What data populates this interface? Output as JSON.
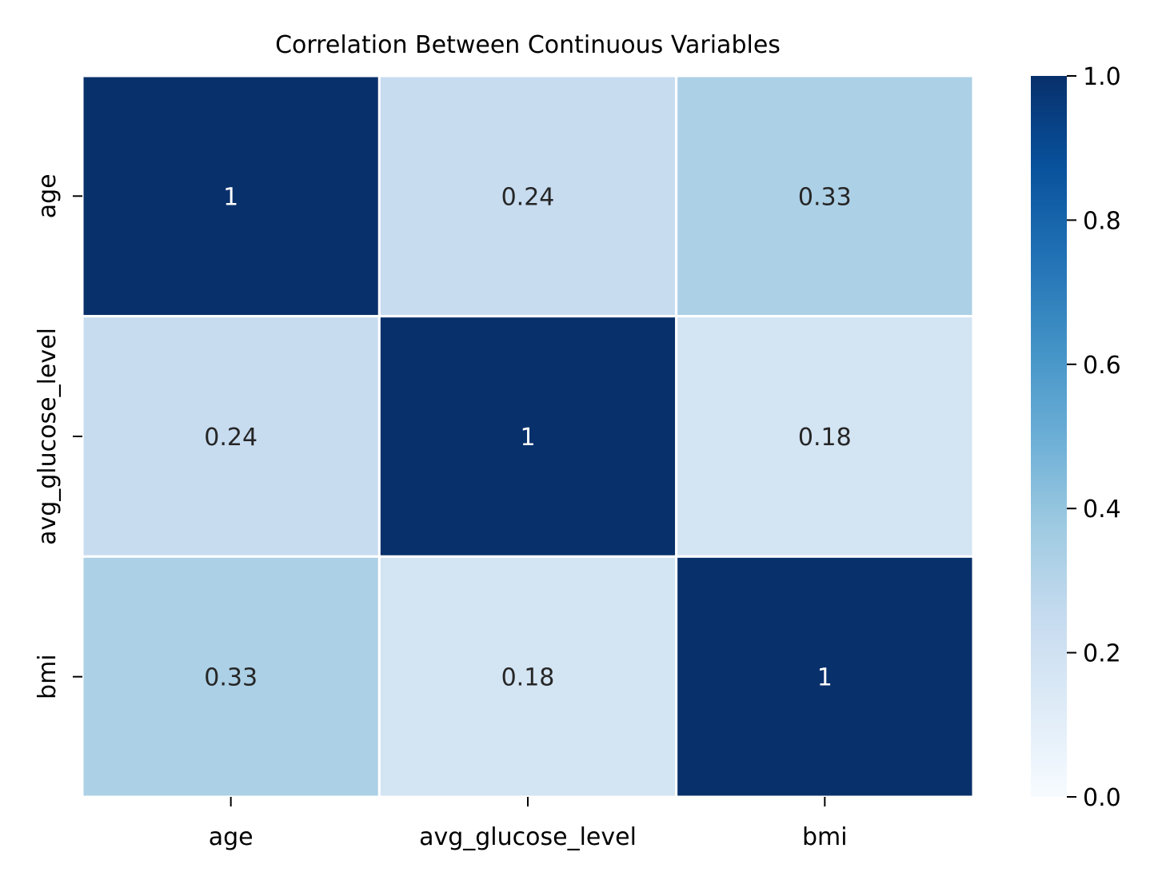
{
  "chart_data": {
    "type": "heatmap",
    "title": "Correlation Between Continuous Variables",
    "xlabel": "",
    "ylabel": "",
    "x_categories": [
      "age",
      "avg_glucose_level",
      "bmi"
    ],
    "y_categories": [
      "age",
      "avg_glucose_level",
      "bmi"
    ],
    "values": [
      [
        1,
        0.24,
        0.33
      ],
      [
        0.24,
        1,
        0.18
      ],
      [
        0.33,
        0.18,
        1
      ]
    ],
    "annotations": [
      [
        "1",
        "0.24",
        "0.33"
      ],
      [
        "0.24",
        "1",
        "0.18"
      ],
      [
        "0.33",
        "0.18",
        "1"
      ]
    ],
    "colormap": "Blues",
    "vmin": 0.0,
    "vmax": 1.0,
    "colorbar_ticks": [
      "0.0",
      "0.2",
      "0.4",
      "0.6",
      "0.8",
      "1.0"
    ],
    "colorbar_tick_values": [
      0.0,
      0.2,
      0.4,
      0.6,
      0.8,
      1.0
    ],
    "cell_separator_color": "#ffffff",
    "annotation_color_dark_cell": "#ffffff",
    "annotation_color_light_cell": "#262626"
  }
}
